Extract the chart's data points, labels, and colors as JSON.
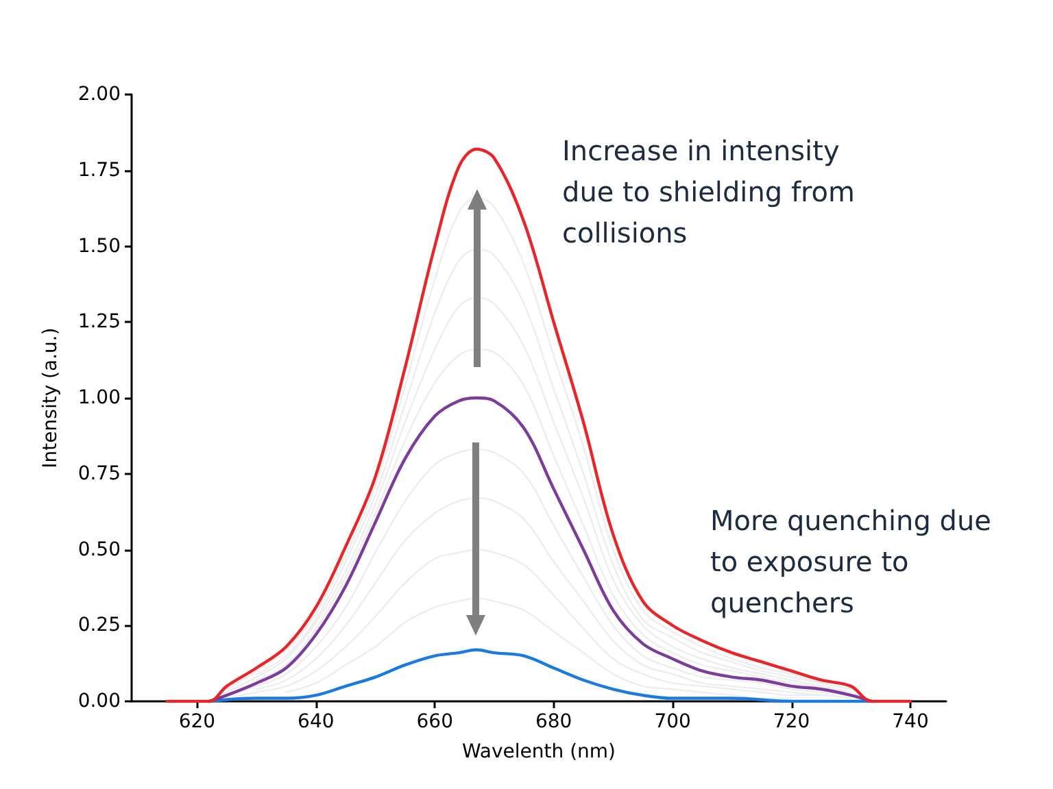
{
  "chart_data": {
    "type": "line",
    "xlabel": "Wavelenth (nm)",
    "ylabel": "Intensity (a.u.)",
    "annotations": [
      "Increase in intensity\ndue to shielding from\ncollisions",
      "More quenching due\nto exposure to\nquenchers"
    ],
    "x": [
      615,
      622,
      625,
      630,
      635,
      640,
      645,
      650,
      655,
      660,
      664,
      667,
      670,
      675,
      680,
      685,
      690,
      695,
      700,
      705,
      710,
      715,
      720,
      725,
      730,
      733.5,
      740
    ],
    "series": [
      {
        "color": "#ededed",
        "x": [
          635,
          640,
          645,
          650,
          655,
          660,
          664,
          667,
          670,
          675,
          680,
          685,
          690,
          695,
          700,
          705,
          710,
          715,
          720
        ],
        "values": [
          0.03,
          0.06,
          0.12,
          0.18,
          0.26,
          0.31,
          0.33,
          0.34,
          0.33,
          0.3,
          0.23,
          0.16,
          0.09,
          0.05,
          0.04,
          0.03,
          0.02,
          0.01,
          0.01
        ]
      },
      {
        "color": "#ededed",
        "x": [
          625,
          630,
          635,
          640,
          645,
          650,
          655,
          660,
          664,
          667,
          670,
          675,
          680,
          685,
          690,
          695,
          700,
          705,
          710,
          715,
          720,
          725,
          730
        ],
        "values": [
          0.01,
          0.03,
          0.05,
          0.1,
          0.18,
          0.28,
          0.39,
          0.47,
          0.49,
          0.5,
          0.49,
          0.45,
          0.35,
          0.24,
          0.14,
          0.09,
          0.06,
          0.05,
          0.04,
          0.03,
          0.02,
          0.02,
          0.01
        ]
      },
      {
        "color": "#ededed",
        "x": [
          630,
          635,
          640,
          645,
          650,
          655,
          660,
          664,
          667,
          670,
          675,
          680,
          685,
          690,
          695,
          700,
          705,
          710,
          715,
          720,
          725
        ],
        "values": [
          0.04,
          0.07,
          0.14,
          0.25,
          0.39,
          0.53,
          0.62,
          0.66,
          0.67,
          0.66,
          0.6,
          0.46,
          0.33,
          0.2,
          0.12,
          0.09,
          0.06,
          0.05,
          0.04,
          0.03,
          0.02
        ]
      },
      {
        "color": "#ededed",
        "x": [
          625,
          630,
          635,
          640,
          645,
          650,
          655,
          660,
          664,
          667,
          670,
          675,
          680,
          685,
          690,
          695,
          700,
          705,
          710,
          715,
          720,
          725,
          730
        ],
        "values": [
          0.02,
          0.05,
          0.09,
          0.18,
          0.31,
          0.49,
          0.66,
          0.78,
          0.82,
          0.83,
          0.82,
          0.75,
          0.58,
          0.41,
          0.25,
          0.15,
          0.11,
          0.08,
          0.07,
          0.06,
          0.04,
          0.03,
          0.02
        ]
      },
      {
        "color": "#ededed",
        "x": [
          630,
          635,
          640,
          645,
          650,
          655,
          660,
          664,
          667,
          670,
          675,
          680,
          685,
          690,
          695,
          700,
          705,
          710,
          715,
          720,
          725
        ],
        "values": [
          0.07,
          0.12,
          0.24,
          0.41,
          0.62,
          0.86,
          1.05,
          1.14,
          1.16,
          1.15,
          1.04,
          0.81,
          0.58,
          0.35,
          0.22,
          0.16,
          0.12,
          0.1,
          0.08,
          0.06,
          0.05
        ]
      },
      {
        "color": "#ededed",
        "x": [
          625,
          630,
          635,
          640,
          645,
          650,
          655,
          660,
          664,
          667,
          670,
          675,
          680,
          685,
          690,
          695,
          700,
          705,
          710,
          715,
          720,
          725,
          730
        ],
        "values": [
          0.03,
          0.08,
          0.14,
          0.26,
          0.43,
          0.65,
          0.92,
          1.16,
          1.3,
          1.33,
          1.31,
          1.17,
          0.92,
          0.67,
          0.4,
          0.25,
          0.18,
          0.14,
          0.11,
          0.09,
          0.07,
          0.05,
          0.03
        ]
      },
      {
        "color": "#ededed",
        "x": [
          630,
          635,
          640,
          645,
          650,
          655,
          660,
          664,
          667,
          670,
          675,
          680,
          685,
          690,
          695,
          700,
          705,
          710,
          715,
          720,
          725
        ],
        "values": [
          0.09,
          0.15,
          0.27,
          0.46,
          0.68,
          0.98,
          1.28,
          1.45,
          1.49,
          1.47,
          1.31,
          1.03,
          0.75,
          0.45,
          0.27,
          0.21,
          0.16,
          0.13,
          0.1,
          0.08,
          0.06
        ]
      },
      {
        "color": "#ededed",
        "x": [
          625,
          630,
          635,
          640,
          645,
          650,
          655,
          660,
          664,
          667,
          670,
          675,
          680,
          685,
          690,
          695,
          700,
          705,
          710,
          715,
          720,
          725,
          730
        ],
        "values": [
          0.04,
          0.1,
          0.17,
          0.29,
          0.48,
          0.71,
          1.04,
          1.39,
          1.61,
          1.66,
          1.63,
          1.44,
          1.14,
          0.84,
          0.5,
          0.3,
          0.23,
          0.18,
          0.14,
          0.11,
          0.09,
          0.06,
          0.04
        ]
      },
      {
        "color": "#1a7ae0",
        "x": [
          622,
          630,
          635,
          640,
          645,
          650,
          655,
          660,
          664,
          667,
          670,
          675,
          680,
          685,
          690,
          695,
          700,
          705,
          710,
          720,
          733.5
        ],
        "values": [
          0,
          0.01,
          0.01,
          0.02,
          0.05,
          0.08,
          0.12,
          0.15,
          0.16,
          0.17,
          0.16,
          0.15,
          0.11,
          0.07,
          0.04,
          0.02,
          0.01,
          0.01,
          0.01,
          0,
          0
        ]
      },
      {
        "color": "#7b3d99",
        "x": [
          622,
          625,
          630,
          635,
          640,
          645,
          650,
          655,
          660,
          664,
          667,
          670,
          675,
          680,
          685,
          690,
          695,
          700,
          705,
          710,
          715,
          720,
          725,
          730,
          733.5
        ],
        "values": [
          0,
          0.02,
          0.06,
          0.11,
          0.22,
          0.38,
          0.59,
          0.8,
          0.94,
          0.99,
          1.0,
          0.99,
          0.9,
          0.7,
          0.5,
          0.3,
          0.19,
          0.14,
          0.1,
          0.08,
          0.07,
          0.05,
          0.04,
          0.02,
          0
        ]
      },
      {
        "color": "#e8262a",
        "values": [
          0,
          0,
          0.05,
          0.11,
          0.18,
          0.31,
          0.51,
          0.74,
          1.1,
          1.5,
          1.76,
          1.82,
          1.79,
          1.58,
          1.25,
          0.92,
          0.55,
          0.33,
          0.25,
          0.2,
          0.16,
          0.13,
          0.1,
          0.07,
          0.05,
          0,
          0
        ]
      }
    ],
    "xlim": [
      609,
      746
    ],
    "xticks": [
      620,
      640,
      660,
      680,
      700,
      720,
      740
    ],
    "ylim": [
      0,
      2
    ],
    "yticks": [
      {
        "value": 0,
        "label": "0.00"
      },
      {
        "value": 0.25,
        "label": "0.25"
      },
      {
        "value": 0.5,
        "label": "0.50"
      },
      {
        "value": 0.75,
        "label": "0.75"
      },
      {
        "value": 1,
        "label": "1.00"
      },
      {
        "value": 1.25,
        "label": "1.25"
      },
      {
        "value": 1.5,
        "label": "1.50"
      },
      {
        "value": 1.75,
        "label": "1.75"
      },
      {
        "value": 2,
        "label": "2.00"
      }
    ],
    "grid": false,
    "marker": "none",
    "line_style": "solid"
  }
}
